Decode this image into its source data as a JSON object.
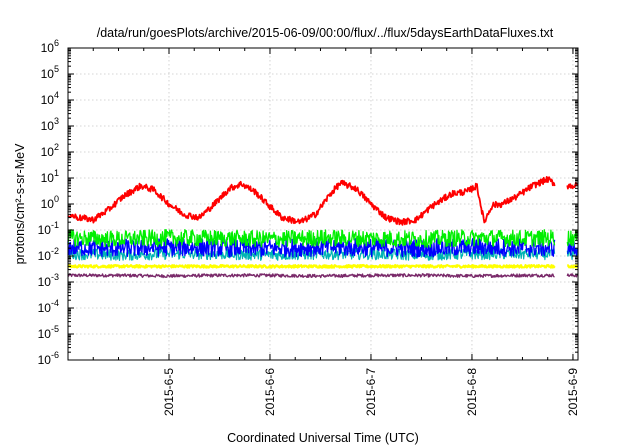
{
  "chart_data": {
    "type": "line",
    "title": "/data/run/goesPlots/archive/2015-06-09/00:00/flux/../flux/5daysEarthDataFluxes.txt",
    "xlabel": "Coordinated Universal Time (UTC)",
    "ylabel": "protons/cm²-s-sr-MeV",
    "yscale": "log",
    "ylim": [
      1e-06,
      1000000.0
    ],
    "xlim_days": [
      4.0,
      9.05
    ],
    "grid": true,
    "legend": "none",
    "x_ticks": [
      {
        "day": 5,
        "label": "2015-6-5"
      },
      {
        "day": 6,
        "label": "2015-6-6"
      },
      {
        "day": 7,
        "label": "2015-6-7"
      },
      {
        "day": 8,
        "label": "2015-6-8"
      },
      {
        "day": 9,
        "label": "2015-6-9"
      }
    ],
    "y_ticks": [
      {
        "exp": -6,
        "base": "10",
        "sup": "-6"
      },
      {
        "exp": -5,
        "base": "10",
        "sup": "-5"
      },
      {
        "exp": -4,
        "base": "10",
        "sup": "-4"
      },
      {
        "exp": -3,
        "base": "10",
        "sup": "-3"
      },
      {
        "exp": -2,
        "base": "10",
        "sup": "-2"
      },
      {
        "exp": -1,
        "base": "10",
        "sup": "-1"
      },
      {
        "exp": 0,
        "base": "10",
        "sup": "0"
      },
      {
        "exp": 1,
        "base": "10",
        "sup": "1"
      },
      {
        "exp": 2,
        "base": "10",
        "sup": "2"
      },
      {
        "exp": 3,
        "base": "10",
        "sup": "3"
      },
      {
        "exp": 4,
        "base": "10",
        "sup": "4"
      },
      {
        "exp": 5,
        "base": "10",
        "sup": "5"
      },
      {
        "exp": 6,
        "base": "10",
        "sup": "6"
      }
    ],
    "data_gaps_days": [
      [
        8.82,
        8.94
      ]
    ],
    "series": [
      {
        "color": "#7a2a6a",
        "x": [
          4.0,
          4.5,
          5.0,
          5.5,
          6.0,
          6.5,
          7.0,
          7.5,
          8.0,
          8.5,
          8.8,
          8.95,
          9.05
        ],
        "y": [
          0.0018,
          0.0018,
          0.0017,
          0.0018,
          0.0018,
          0.0017,
          0.0018,
          0.0018,
          0.0017,
          0.0018,
          0.0018,
          0.0018,
          0.0018
        ]
      },
      {
        "color": "#ffff00",
        "x": [
          4.0,
          4.5,
          5.0,
          5.5,
          6.0,
          6.5,
          7.0,
          7.5,
          8.0,
          8.5,
          8.8,
          8.95,
          9.05
        ],
        "y": [
          0.004,
          0.004,
          0.004,
          0.004,
          0.004,
          0.004,
          0.004,
          0.004,
          0.004,
          0.004,
          0.004,
          0.004,
          0.004
        ]
      },
      {
        "color": "#00b4b4",
        "x": [
          4.0,
          4.5,
          5.0,
          5.5,
          6.0,
          6.5,
          7.0,
          7.5,
          8.0,
          8.5,
          8.8,
          8.95,
          9.05
        ],
        "y": [
          0.012,
          0.011,
          0.012,
          0.012,
          0.011,
          0.012,
          0.012,
          0.011,
          0.012,
          0.012,
          0.012,
          0.012,
          0.012
        ]
      },
      {
        "color": "#0000ff",
        "x": [
          4.0,
          4.5,
          5.0,
          5.5,
          6.0,
          6.5,
          7.0,
          7.5,
          8.0,
          8.5,
          8.8,
          8.95,
          9.05
        ],
        "y": [
          0.022,
          0.02,
          0.022,
          0.021,
          0.02,
          0.022,
          0.021,
          0.02,
          0.022,
          0.021,
          0.021,
          0.02,
          0.021
        ]
      },
      {
        "color": "#00ee00",
        "x": [
          4.0,
          4.5,
          5.0,
          5.5,
          6.0,
          6.5,
          7.0,
          7.5,
          8.0,
          8.5,
          8.8,
          8.95,
          9.05
        ],
        "y": [
          0.05,
          0.045,
          0.05,
          0.048,
          0.045,
          0.05,
          0.048,
          0.045,
          0.05,
          0.048,
          0.05,
          0.05,
          0.05
        ]
      },
      {
        "color": "#ff0000",
        "x": [
          4.0,
          4.1,
          4.25,
          4.4,
          4.55,
          4.72,
          4.85,
          5.0,
          5.15,
          5.3,
          5.45,
          5.6,
          5.72,
          5.85,
          6.0,
          6.12,
          6.3,
          6.45,
          6.6,
          6.7,
          6.85,
          7.0,
          7.15,
          7.3,
          7.45,
          7.6,
          7.8,
          7.95,
          8.05,
          8.12,
          8.2,
          8.3,
          8.45,
          8.6,
          8.75,
          8.82,
          8.95,
          9.05
        ],
        "y": [
          0.4,
          0.3,
          0.25,
          0.6,
          2.0,
          5.0,
          3.5,
          1.0,
          0.4,
          0.3,
          1.0,
          4.0,
          6.0,
          3.0,
          0.8,
          0.3,
          0.2,
          0.4,
          2.5,
          6.5,
          4.0,
          1.0,
          0.3,
          0.2,
          0.25,
          0.8,
          2.5,
          3.0,
          5.0,
          0.2,
          0.9,
          1.0,
          2.0,
          5.0,
          9.0,
          6.0,
          5.0,
          5.0
        ]
      }
    ]
  }
}
